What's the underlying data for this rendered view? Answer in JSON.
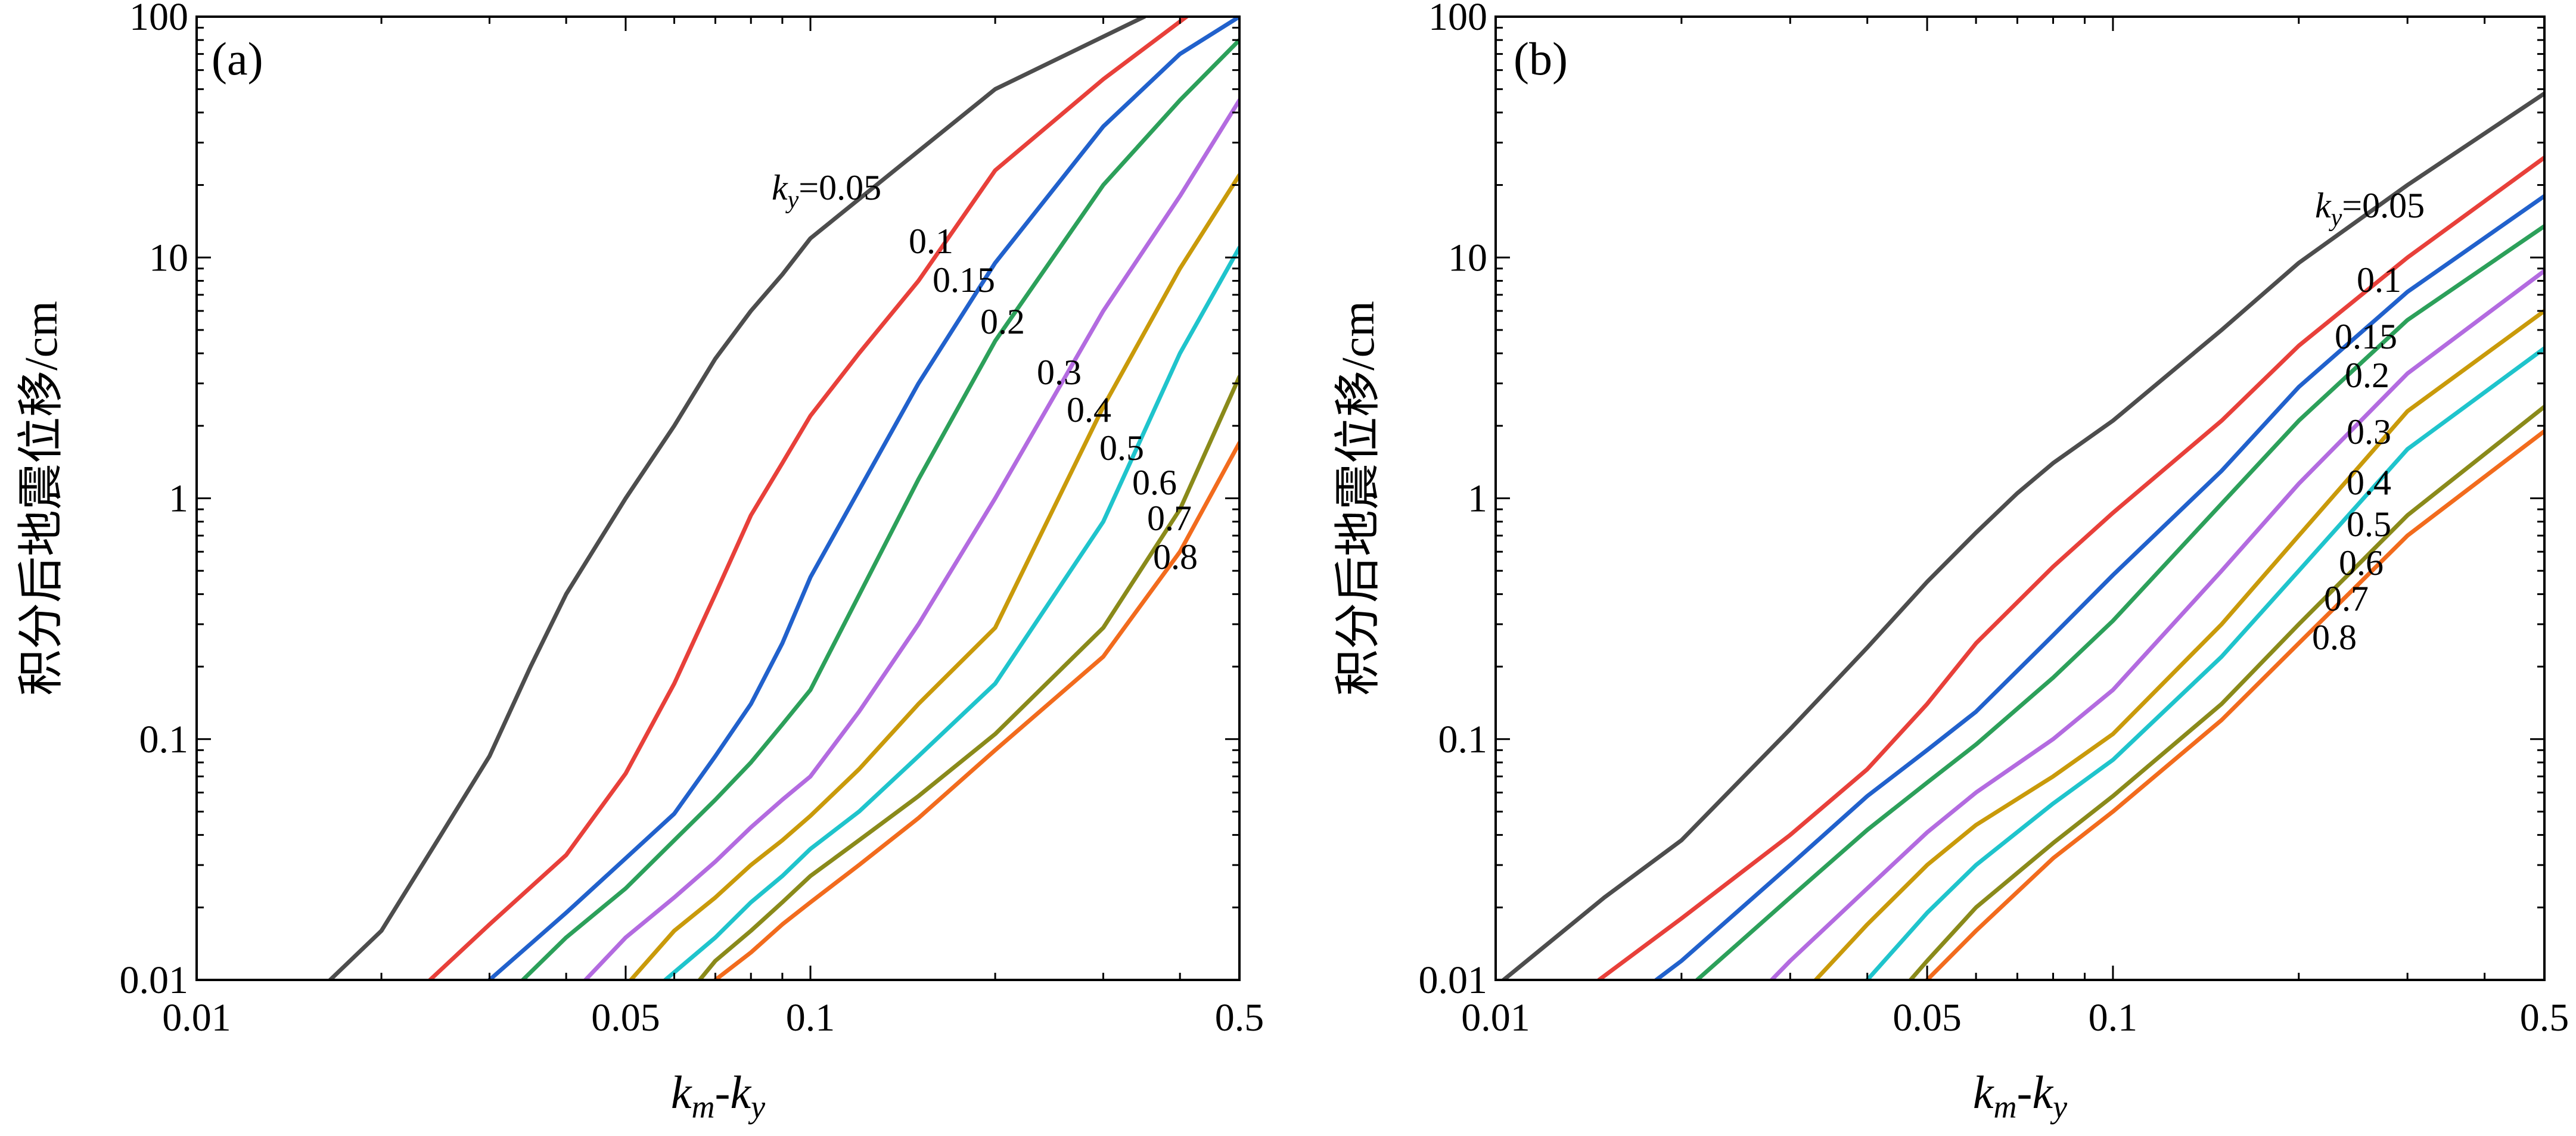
{
  "chart_data": [
    {
      "type": "line",
      "panel_label": "(a)",
      "xlabel": "k_m-k_y",
      "ylabel": "积分后地震位移/cm",
      "xscale": "log",
      "yscale": "log",
      "xlim": [
        0.01,
        0.5
      ],
      "ylim": [
        0.01,
        100
      ],
      "xticks": [
        "0.01",
        "0.05",
        "0.1",
        "0.5"
      ],
      "yticks": [
        "0.01",
        "0.1",
        "1",
        "10",
        "100"
      ],
      "grid": false,
      "series": [
        {
          "name": "k_y=0.05",
          "color": "#4d4d4d",
          "x": [
            0.0165,
            0.02,
            0.025,
            0.03,
            0.035,
            0.04,
            0.05,
            0.06,
            0.07,
            0.08,
            0.09,
            0.1,
            0.2,
            0.35
          ],
          "y": [
            0.01,
            0.016,
            0.04,
            0.085,
            0.2,
            0.4,
            1.0,
            2.0,
            3.8,
            6.0,
            8.5,
            12,
            50,
            100
          ]
        },
        {
          "name": "0.1",
          "color": "#e8403a",
          "x": [
            0.024,
            0.03,
            0.04,
            0.05,
            0.06,
            0.07,
            0.08,
            0.09,
            0.1,
            0.12,
            0.15,
            0.2,
            0.3,
            0.41
          ],
          "y": [
            0.01,
            0.017,
            0.033,
            0.072,
            0.17,
            0.4,
            0.85,
            1.4,
            2.2,
            4.0,
            8.0,
            23,
            55,
            100
          ]
        },
        {
          "name": "0.15",
          "color": "#2161cc",
          "x": [
            0.03,
            0.04,
            0.05,
            0.06,
            0.07,
            0.08,
            0.09,
            0.1,
            0.15,
            0.2,
            0.3,
            0.4,
            0.5
          ],
          "y": [
            0.01,
            0.019,
            0.032,
            0.049,
            0.085,
            0.14,
            0.25,
            0.47,
            3.0,
            9.5,
            35,
            70,
            100
          ]
        },
        {
          "name": "0.2",
          "color": "#2ca05a",
          "x": [
            0.034,
            0.04,
            0.05,
            0.06,
            0.07,
            0.08,
            0.09,
            0.1,
            0.15,
            0.2,
            0.3,
            0.4,
            0.5
          ],
          "y": [
            0.01,
            0.015,
            0.024,
            0.038,
            0.056,
            0.08,
            0.115,
            0.16,
            1.2,
            4.5,
            20,
            45,
            80
          ]
        },
        {
          "name": "0.3",
          "color": "#b36be0",
          "x": [
            0.043,
            0.05,
            0.06,
            0.07,
            0.08,
            0.09,
            0.1,
            0.12,
            0.15,
            0.2,
            0.3,
            0.4,
            0.5
          ],
          "y": [
            0.01,
            0.015,
            0.022,
            0.031,
            0.043,
            0.056,
            0.07,
            0.13,
            0.3,
            1.0,
            6.0,
            18,
            45
          ]
        },
        {
          "name": "0.4",
          "color": "#c99a0a",
          "x": [
            0.051,
            0.06,
            0.07,
            0.08,
            0.09,
            0.1,
            0.12,
            0.15,
            0.2,
            0.3,
            0.4,
            0.5
          ],
          "y": [
            0.01,
            0.016,
            0.022,
            0.03,
            0.038,
            0.048,
            0.075,
            0.14,
            0.29,
            2.4,
            9.0,
            22
          ]
        },
        {
          "name": "0.5",
          "color": "#1fc4cc",
          "x": [
            0.058,
            0.07,
            0.08,
            0.09,
            0.1,
            0.12,
            0.15,
            0.2,
            0.3,
            0.4,
            0.5
          ],
          "y": [
            0.01,
            0.015,
            0.021,
            0.027,
            0.035,
            0.05,
            0.085,
            0.17,
            0.8,
            4.0,
            11
          ]
        },
        {
          "name": "0.6",
          "color": "#8a8a1a",
          "x": [
            0.066,
            0.07,
            0.08,
            0.09,
            0.1,
            0.12,
            0.15,
            0.2,
            0.3,
            0.4,
            0.5
          ],
          "y": [
            0.01,
            0.012,
            0.016,
            0.021,
            0.027,
            0.038,
            0.058,
            0.105,
            0.29,
            0.9,
            3.2
          ]
        },
        {
          "name": "0.7",
          "color": "#8a8a1a",
          "x": [],
          "y": []
        },
        {
          "name": "0.8",
          "color": "#f26b1d",
          "x": [
            0.07,
            0.08,
            0.09,
            0.1,
            0.12,
            0.15,
            0.2,
            0.3,
            0.4,
            0.5
          ],
          "y": [
            0.01,
            0.013,
            0.017,
            0.021,
            0.03,
            0.047,
            0.09,
            0.22,
            0.6,
            1.7
          ]
        }
      ],
      "curve_labels": [
        {
          "text": "0.05",
          "prefix": "k",
          "sub": "y",
          "eq": "="
        },
        {
          "text": "0.1"
        },
        {
          "text": "0.15"
        },
        {
          "text": "0.2"
        },
        {
          "text": "0.3"
        },
        {
          "text": "0.4"
        },
        {
          "text": "0.5"
        },
        {
          "text": "0.6"
        },
        {
          "text": "0.7"
        },
        {
          "text": "0.8"
        }
      ]
    },
    {
      "type": "line",
      "panel_label": "(b)",
      "xlabel": "k_m-k_y",
      "ylabel": "积分后地震位移/cm",
      "xscale": "log",
      "yscale": "log",
      "xlim": [
        0.01,
        0.5
      ],
      "ylim": [
        0.01,
        100
      ],
      "xticks": [
        "0.01",
        "0.05",
        "0.1",
        "0.5"
      ],
      "yticks": [
        "0.01",
        "0.1",
        "1",
        "10",
        "100"
      ],
      "grid": false,
      "series": [
        {
          "name": "k_y=0.05",
          "color": "#4d4d4d",
          "x": [
            0.0103,
            0.015,
            0.02,
            0.03,
            0.04,
            0.05,
            0.06,
            0.07,
            0.08,
            0.1,
            0.15,
            0.2,
            0.3,
            0.5
          ],
          "y": [
            0.01,
            0.022,
            0.038,
            0.11,
            0.24,
            0.45,
            0.72,
            1.05,
            1.4,
            2.1,
            5.0,
            9.5,
            20,
            48
          ]
        },
        {
          "name": "0.1",
          "color": "#e8403a",
          "x": [
            0.0147,
            0.02,
            0.03,
            0.04,
            0.05,
            0.06,
            0.08,
            0.1,
            0.15,
            0.2,
            0.3,
            0.5
          ],
          "y": [
            0.01,
            0.018,
            0.04,
            0.075,
            0.14,
            0.25,
            0.52,
            0.87,
            2.1,
            4.3,
            10,
            26
          ]
        },
        {
          "name": "0.15",
          "color": "#2161cc",
          "x": [
            0.0182,
            0.02,
            0.03,
            0.04,
            0.05,
            0.06,
            0.08,
            0.1,
            0.15,
            0.2,
            0.3,
            0.5
          ],
          "y": [
            0.01,
            0.012,
            0.03,
            0.058,
            0.09,
            0.13,
            0.27,
            0.48,
            1.3,
            2.9,
            7.2,
            18
          ]
        },
        {
          "name": "0.2",
          "color": "#2ca05a",
          "x": [
            0.0212,
            0.03,
            0.04,
            0.05,
            0.06,
            0.08,
            0.1,
            0.15,
            0.2,
            0.3,
            0.5
          ],
          "y": [
            0.01,
            0.022,
            0.042,
            0.066,
            0.095,
            0.18,
            0.31,
            0.95,
            2.1,
            5.5,
            13.5
          ]
        },
        {
          "name": "0.3",
          "color": "#b36be0",
          "x": [
            0.028,
            0.03,
            0.04,
            0.05,
            0.06,
            0.08,
            0.1,
            0.15,
            0.2,
            0.3,
            0.5
          ],
          "y": [
            0.01,
            0.012,
            0.024,
            0.041,
            0.06,
            0.1,
            0.16,
            0.5,
            1.15,
            3.3,
            8.8
          ]
        },
        {
          "name": "0.4",
          "color": "#c99a0a",
          "x": [
            0.033,
            0.04,
            0.05,
            0.06,
            0.08,
            0.1,
            0.15,
            0.2,
            0.3,
            0.5
          ],
          "y": [
            0.01,
            0.017,
            0.03,
            0.044,
            0.07,
            0.105,
            0.3,
            0.7,
            2.3,
            6.0
          ]
        },
        {
          "name": "0.5",
          "color": "#1fc4cc",
          "x": [
            0.04,
            0.05,
            0.06,
            0.08,
            0.1,
            0.15,
            0.2,
            0.3,
            0.5
          ],
          "y": [
            0.01,
            0.019,
            0.03,
            0.054,
            0.082,
            0.22,
            0.5,
            1.6,
            4.2
          ]
        },
        {
          "name": "0.6",
          "color": "#8a8a1a",
          "x": [
            0.047,
            0.05,
            0.06,
            0.08,
            0.1,
            0.15,
            0.2,
            0.3,
            0.5
          ],
          "y": [
            0.01,
            0.012,
            0.02,
            0.037,
            0.058,
            0.14,
            0.3,
            0.85,
            2.4
          ]
        },
        {
          "name": "0.7",
          "color": "#8a8a1a",
          "x": [],
          "y": []
        },
        {
          "name": "0.8",
          "color": "#f26b1d",
          "x": [
            0.05,
            0.06,
            0.08,
            0.1,
            0.15,
            0.2,
            0.3,
            0.5
          ],
          "y": [
            0.01,
            0.016,
            0.032,
            0.05,
            0.12,
            0.25,
            0.7,
            1.9
          ]
        }
      ],
      "curve_labels": [
        {
          "text": "0.05",
          "prefix": "k",
          "sub": "y",
          "eq": "="
        },
        {
          "text": "0.1"
        },
        {
          "text": "0.15"
        },
        {
          "text": "0.2"
        },
        {
          "text": "0.3"
        },
        {
          "text": "0.4"
        },
        {
          "text": "0.5"
        },
        {
          "text": "0.6"
        },
        {
          "text": "0.7"
        },
        {
          "text": "0.8"
        }
      ]
    }
  ],
  "axis_label_parts": {
    "x_main": "k",
    "x_sub_m": "m",
    "x_dash": "-",
    "x_main2": "k",
    "x_sub_y": "y",
    "y_text": "积分后地震位移/cm"
  }
}
